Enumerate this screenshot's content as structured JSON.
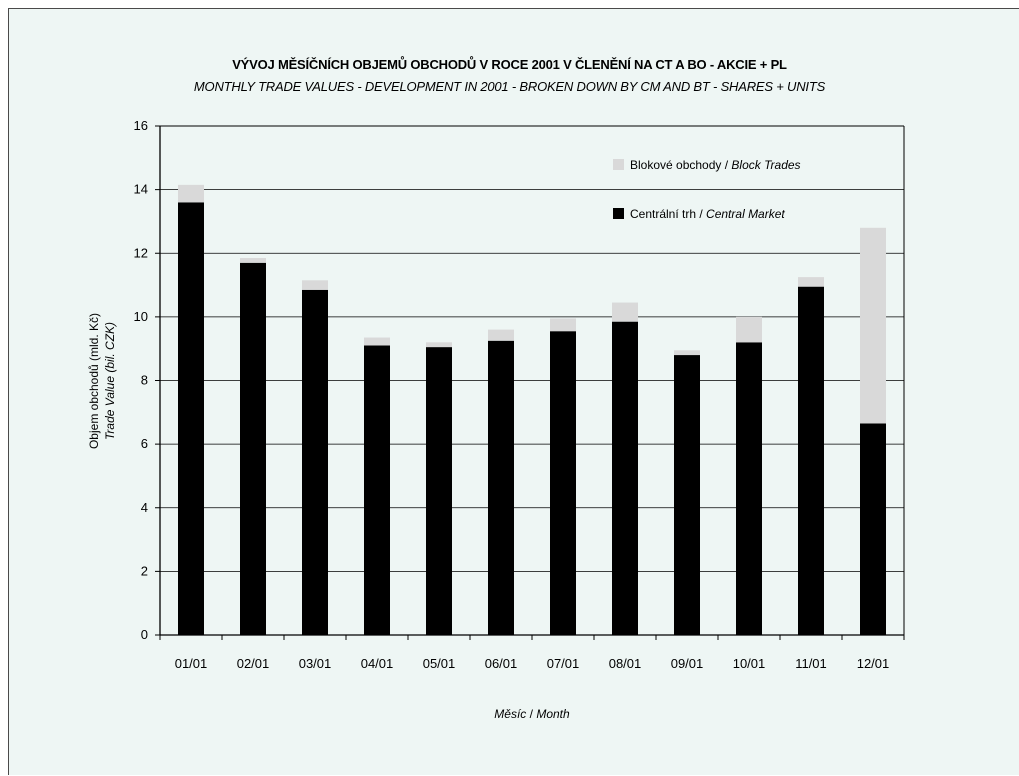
{
  "chart_data": {
    "type": "bar",
    "stacked": true,
    "title": "VÝVOJ MĚSÍČNÍCH OBJEMŮ OBCHODŮ V ROCE 2001 V ČLENĚNÍ NA CT A BO - AKCIE + PL",
    "subtitle": "MONTHLY TRADE VALUES - DEVELOPMENT IN 2001 - BROKEN DOWN BY CM AND BT - SHARES + UNITS",
    "ylabel": "Objem obchodů (mld. Kč)",
    "ylabel2": "Trade Value (bil. CZK)",
    "xlabel": "Měsíc",
    "xlabel2": "Month",
    "ylim": [
      0,
      16
    ],
    "yticks": [
      "0",
      "2",
      "4",
      "6",
      "8",
      "10",
      "12",
      "14",
      "16"
    ],
    "grid": true,
    "legend_position": "top-right",
    "categories": [
      "01/01",
      "02/01",
      "03/01",
      "04/01",
      "05/01",
      "06/01",
      "07/01",
      "08/01",
      "09/01",
      "10/01",
      "11/01",
      "12/01"
    ],
    "series": [
      {
        "name": "Centrální trh",
        "name_en": "Central Market",
        "color": "#000000",
        "values": [
          13.6,
          11.7,
          10.85,
          9.1,
          9.05,
          9.25,
          9.55,
          9.85,
          8.8,
          9.2,
          10.95,
          6.65
        ]
      },
      {
        "name": "Blokové obchody",
        "name_en": "Block Trades",
        "color": "#d9d9d9",
        "values": [
          0.55,
          0.15,
          0.3,
          0.25,
          0.15,
          0.35,
          0.4,
          0.6,
          0.15,
          0.8,
          0.3,
          6.15
        ]
      }
    ]
  }
}
